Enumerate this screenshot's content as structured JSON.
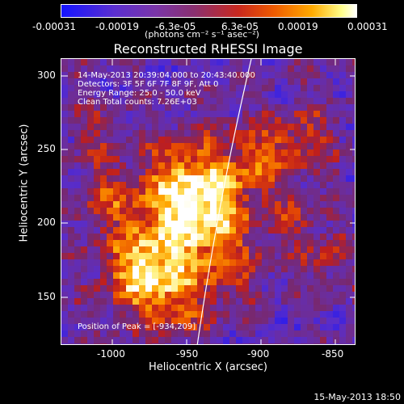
{
  "colorbar": {
    "tick_labels": [
      "-0.00031",
      "-0.00019",
      "-6.3e-05",
      "6.3e-05",
      "0.00019",
      "0.00031"
    ],
    "units_label": "(photons cm⁻² s⁻¹ asec⁻²)",
    "colors": [
      "#1414ff",
      "#7a35a8",
      "#c8281e",
      "#ffaa00",
      "#ffffff"
    ]
  },
  "plot": {
    "title": "Reconstructed RHESSI Image",
    "info": {
      "time_range": "14-May-2013 20:39:04.000 to 20:43:40.000",
      "detectors": "Detectors: 3F 5F 6F 7F 8F 9F, Att 0",
      "energy_range": "Energy Range: 25.0 - 50.0 keV",
      "method": "Clean     Total counts: 7.26E+03",
      "peak": "Position of Peak = [-934,209]"
    },
    "xlabel": "Heliocentric X (arcsec)",
    "ylabel": "Heliocentric Y (arcsec)",
    "x_ticks": [
      "-1000",
      "-950",
      "-900",
      "-850"
    ],
    "y_ticks": [
      "300",
      "250",
      "200",
      "150"
    ],
    "x_range": [
      -1040,
      -835
    ],
    "y_range": [
      117,
      312
    ]
  },
  "footer": {
    "timestamp": "15-May-2013 18:50"
  }
}
